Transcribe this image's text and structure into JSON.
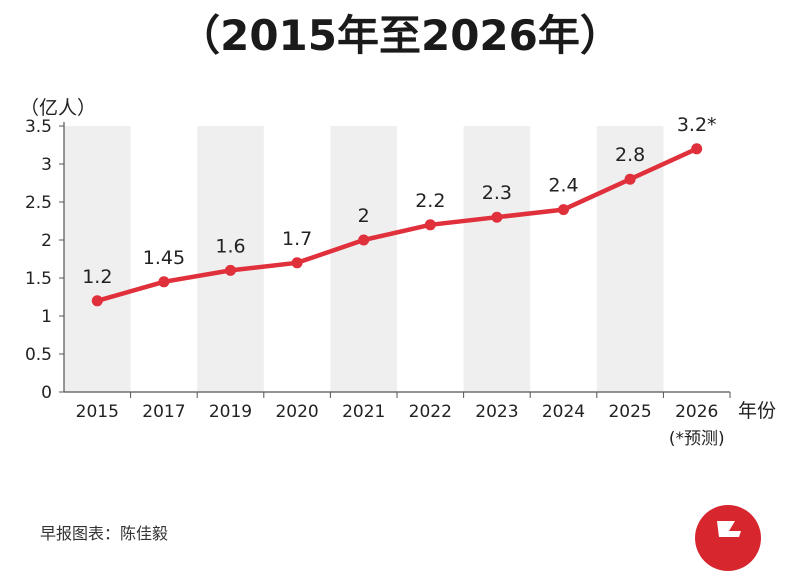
{
  "header": {
    "subtitle": "（2015年至2026年）"
  },
  "chart_data": {
    "type": "line",
    "subtitle": "（2015年至2026年）",
    "ylabel": "（亿人）",
    "xlabel": "年份",
    "ylim": [
      0,
      3.5
    ],
    "yticks": [
      "0",
      "0.5",
      "1",
      "1.5",
      "2",
      "2.5",
      "3",
      "3.5"
    ],
    "categories": [
      "2015",
      "2017",
      "2019",
      "2020",
      "2021",
      "2022",
      "2023",
      "2024",
      "2025",
      "2026"
    ],
    "category_note": "(*预测)",
    "values": [
      1.2,
      1.45,
      1.6,
      1.7,
      2,
      2.2,
      2.3,
      2.4,
      2.8,
      3.2
    ],
    "data_labels": [
      "1.2",
      "1.45",
      "1.6",
      "1.7",
      "2",
      "2.2",
      "2.3",
      "2.4",
      "2.8",
      "3.2*"
    ],
    "line_color": "#e0303b",
    "band_color": "#efefef",
    "grid": false
  },
  "footer": {
    "credit": "早报图表：陈佳毅"
  },
  "colors": {
    "accent": "#e0303b",
    "logo": "#d7262e"
  }
}
